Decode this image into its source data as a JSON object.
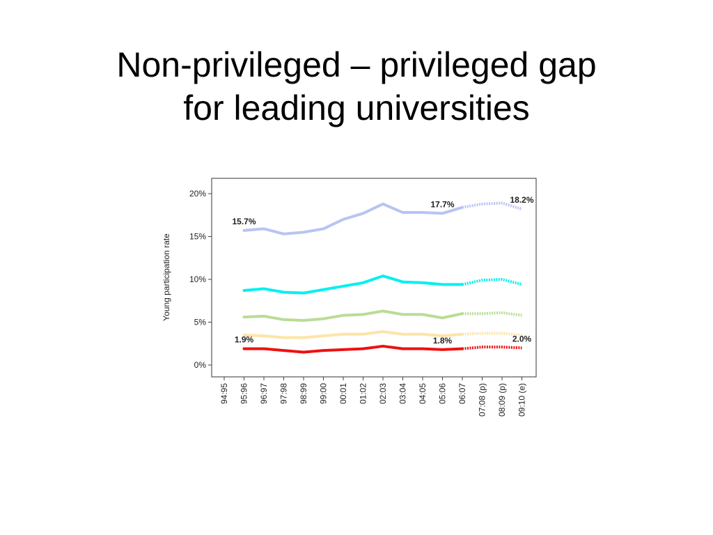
{
  "slide": {
    "title_line1": "Non-privileged – privileged gap",
    "title_line2": "for leading universities"
  },
  "chart_data": {
    "type": "line",
    "title": "",
    "xlabel": "",
    "ylabel": "Young participation rate",
    "ylim": [
      0,
      21.5
    ],
    "yticks": [
      0,
      5,
      10,
      15,
      20
    ],
    "ytick_labels": [
      "0%",
      "5%",
      "10%",
      "15%",
      "20%"
    ],
    "categories": [
      "94:95",
      "95:96",
      "96:97",
      "97:98",
      "98:99",
      "99:00",
      "00:01",
      "01:02",
      "02:03",
      "03:04",
      "04:05",
      "05:06",
      "06:07",
      "07:08 (p)",
      "08:09 (p)",
      "09:10 (e)"
    ],
    "solid_through": "06:07",
    "projected_from": "06:07",
    "grid": false,
    "series": [
      {
        "color": "#b8c4f2",
        "values": [
          null,
          15.7,
          15.9,
          15.3,
          15.5,
          15.9,
          17.0,
          17.7,
          18.8,
          17.8,
          17.8,
          17.7,
          18.4,
          18.8,
          18.9,
          18.2
        ]
      },
      {
        "color": "#00f0f0",
        "values": [
          null,
          8.7,
          8.9,
          8.5,
          8.4,
          8.8,
          9.2,
          9.6,
          10.4,
          9.7,
          9.6,
          9.4,
          9.4,
          9.9,
          10.0,
          9.4
        ]
      },
      {
        "color": "#b9dc96",
        "values": [
          null,
          5.6,
          5.7,
          5.3,
          5.2,
          5.4,
          5.8,
          5.9,
          6.3,
          5.9,
          5.9,
          5.5,
          6.0,
          6.0,
          6.1,
          5.8
        ]
      },
      {
        "color": "#fde4a8",
        "values": [
          null,
          3.5,
          3.4,
          3.2,
          3.2,
          3.4,
          3.6,
          3.6,
          3.9,
          3.6,
          3.6,
          3.4,
          3.6,
          3.7,
          3.7,
          3.5
        ]
      },
      {
        "color": "#ee1111",
        "values": [
          null,
          1.9,
          1.9,
          1.7,
          1.5,
          1.7,
          1.8,
          1.9,
          2.2,
          1.9,
          1.9,
          1.8,
          1.9,
          2.1,
          2.1,
          2.0
        ]
      }
    ],
    "annotations": [
      {
        "text": "15.7%",
        "category": "95:96",
        "value": 15.7
      },
      {
        "text": "17.7%",
        "category": "05:06",
        "value": 17.7
      },
      {
        "text": "18.2%",
        "category": "09:10 (e)",
        "value": 18.2
      },
      {
        "text": "1.9%",
        "category": "95:96",
        "value": 1.9
      },
      {
        "text": "1.8%",
        "category": "05:06",
        "value": 1.8
      },
      {
        "text": "2.0%",
        "category": "09:10 (e)",
        "value": 2.0
      }
    ]
  }
}
